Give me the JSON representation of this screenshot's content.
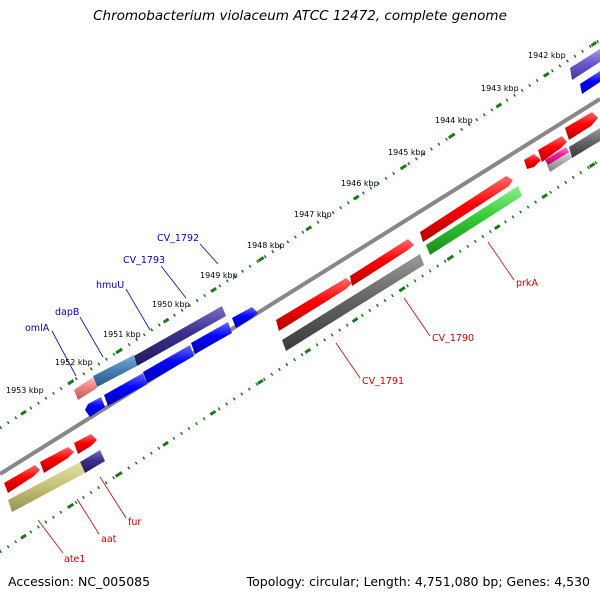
{
  "title": "Chromobacterium violaceum ATCC 12472, complete genome",
  "footer": {
    "accession": "Accession: NC_005085",
    "stats": "Topology: circular; Length: 4,751,080 bp; Genes: 4,530"
  },
  "kbp_labels": [
    "1942 kbp",
    "1943 kbp",
    "1944 kbp",
    "1945 kbp",
    "1946 kbp",
    "1947 kbp",
    "1948 kbp",
    "1949 kbp",
    "1950 kbp",
    "1951 kbp",
    "1952 kbp",
    "1953 kbp"
  ],
  "gene_labels_blue": [
    "CV_1792",
    "CV_1793",
    "hmuU",
    "dapB",
    "omlA"
  ],
  "gene_labels_red": [
    "prkA",
    "CV_1790",
    "CV_1791",
    "fur",
    "aat",
    "ate1"
  ],
  "colors": {
    "backbone": "#888888",
    "tick": "#1a7a1a",
    "forward_gene": "#ff0000",
    "reverse_gene": "#0000ff",
    "dark_gene": "#555555",
    "navy_gene": "#3a2f8a",
    "green_gene": "#33cc33",
    "olive_gene": "#c8c47a",
    "blue_label": "#0000cc",
    "red_label": "#cc0000"
  }
}
